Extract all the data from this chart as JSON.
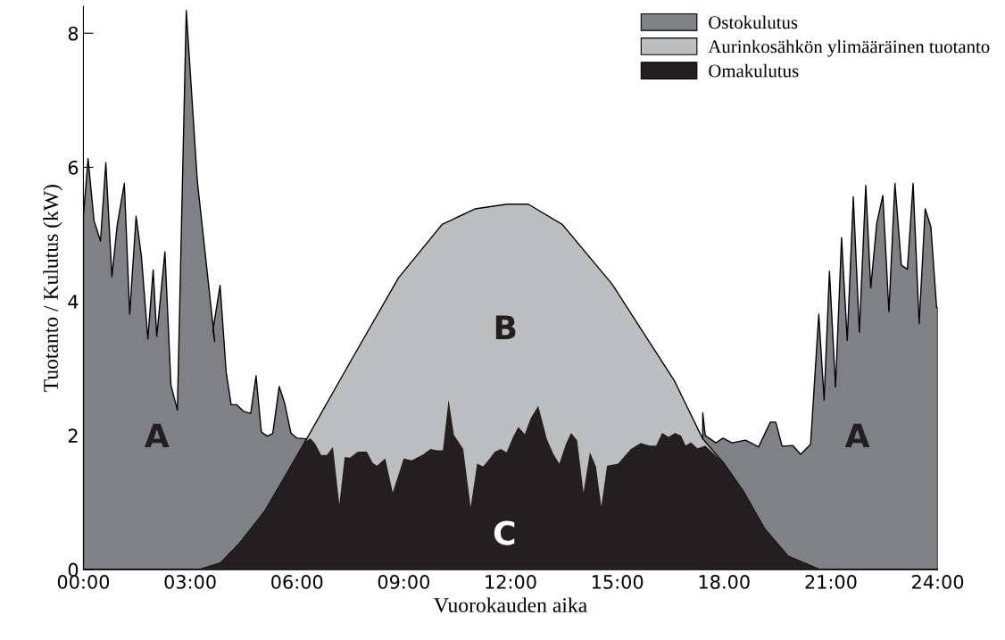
{
  "chart_data": {
    "type": "area",
    "xlabel": "Vuorokauden aika",
    "ylabel": "Tuotanto / Kulutus (kW)",
    "xlim": [
      0,
      24
    ],
    "xticks": [
      {
        "value": 0,
        "label": "00:00"
      },
      {
        "value": 3,
        "label": "03:00"
      },
      {
        "value": 6,
        "label": "06:00"
      },
      {
        "value": 9,
        "label": "09:00"
      },
      {
        "value": 12,
        "label": "12:00"
      },
      {
        "value": 15,
        "label": "15:00"
      },
      {
        "value": 18,
        "label": "18.00"
      },
      {
        "value": 21,
        "label": "21:00"
      },
      {
        "value": 24,
        "label": "24:00"
      }
    ],
    "ylim": [
      0,
      8.4
    ],
    "yticks": [
      0,
      2,
      4,
      6,
      8
    ],
    "grid": false,
    "legend": "top right",
    "series": [
      {
        "name": "Ostokulutus",
        "color": "#808184",
        "x": [
          0,
          0.13,
          0.3,
          0.48,
          0.63,
          0.8,
          0.95,
          1.15,
          1.3,
          1.48,
          1.63,
          1.81,
          1.96,
          2.06,
          2.29,
          2.46,
          2.64,
          2.89,
          3.2,
          3.69,
          3.64,
          3.84,
          4.01,
          4.15,
          4.3,
          4.5,
          4.7,
          4.85,
          5.0,
          5.17,
          5.32,
          5.5,
          5.65,
          5.83,
          6.0,
          6.26,
          6.38,
          6.51,
          6.68,
          6.84,
          7.01,
          7.19,
          7.34,
          7.49,
          7.71,
          7.96,
          8.13,
          8.25,
          8.48,
          8.69,
          9.0,
          9.22,
          9.55,
          9.75,
          9.93,
          10.1,
          10.26,
          10.41,
          10.67,
          10.88,
          11.06,
          11.23,
          11.39,
          11.56,
          11.73,
          11.89,
          12.07,
          12.22,
          12.4,
          12.57,
          12.78,
          13.02,
          13.2,
          13.37,
          13.56,
          13.7,
          13.87,
          14.05,
          14.23,
          14.4,
          14.55,
          14.71,
          15.02,
          15.38,
          15.66,
          15.91,
          16.09,
          16.26,
          16.44,
          16.62,
          16.79,
          16.92,
          17.07,
          17.4,
          17.47,
          17.77,
          17.97,
          18.22,
          18.6,
          18.97,
          19.3,
          19.45,
          19.63,
          19.93,
          20.15,
          20.43,
          20.66,
          20.81,
          20.96,
          21.13,
          21.3,
          21.46,
          21.63,
          21.8,
          21.98,
          22.12,
          22.29,
          22.46,
          22.63,
          22.8,
          22.98,
          23.15,
          23.31,
          23.48,
          23.65,
          23.81,
          23.97,
          24
        ],
        "values": [
          5.27,
          6.13,
          5.2,
          4.9,
          6.07,
          4.37,
          5.14,
          5.76,
          3.81,
          5.27,
          4.67,
          3.44,
          4.47,
          3.48,
          4.74,
          2.75,
          2.38,
          8.34,
          5.8,
          3.4,
          3.57,
          4.24,
          2.95,
          2.46,
          2.46,
          2.36,
          2.33,
          2.89,
          2.05,
          1.99,
          2.03,
          2.73,
          2.49,
          2.04,
          1.96,
          1.95,
          null,
          null,
          null,
          null,
          null,
          null,
          null,
          null,
          null,
          null,
          null,
          null,
          null,
          null,
          null,
          null,
          null,
          null,
          null,
          null,
          null,
          null,
          null,
          null,
          null,
          null,
          null,
          null,
          null,
          null,
          null,
          null,
          null,
          null,
          null,
          null,
          null,
          null,
          null,
          null,
          null,
          null,
          null,
          null,
          null,
          null,
          null,
          null,
          null,
          null,
          null,
          null,
          null,
          null,
          null,
          null,
          null,
          2.34,
          2.0,
          1.89,
          1.96,
          1.89,
          1.93,
          1.83,
          2.2,
          2.2,
          1.84,
          1.85,
          1.72,
          1.87,
          3.81,
          2.53,
          4.45,
          2.72,
          4.95,
          3.42,
          5.56,
          3.54,
          5.73,
          4.2,
          5.17,
          5.58,
          3.85,
          5.76,
          4.54,
          4.48,
          5.76,
          3.67,
          5.38,
          5.11,
          3.91,
          3.91
        ]
      },
      {
        "name": "Aurinkosähkön ylimääräinen tuotanto",
        "color": "#bdbec0",
        "x": [
          0,
          3.0,
          3.3,
          3.85,
          4.35,
          5.08,
          5.7,
          6.23,
          7.5,
          8.85,
          10.08,
          11.0,
          11.9,
          12.5,
          13.45,
          14.85,
          16.6,
          17.4,
          17.97,
          18.55,
          19.15,
          19.8,
          20.65,
          21.5,
          24
        ],
        "values": [
          0,
          0,
          0.01,
          0.1,
          0.37,
          0.86,
          1.42,
          1.91,
          3.1,
          4.35,
          5.15,
          5.38,
          5.45,
          5.45,
          5.15,
          4.26,
          2.82,
          1.95,
          1.6,
          1.16,
          0.6,
          0.2,
          0.01,
          0,
          0
        ]
      },
      {
        "name": "Omakulutus",
        "color": "#231f20",
        "x": [
          0,
          3.0,
          3.3,
          3.85,
          4.35,
          5.08,
          5.7,
          6.23,
          6.38,
          6.51,
          6.68,
          6.84,
          7.01,
          7.19,
          7.34,
          7.49,
          7.71,
          7.96,
          8.13,
          8.25,
          8.48,
          8.69,
          9.0,
          9.22,
          9.55,
          9.75,
          9.93,
          10.1,
          10.26,
          10.41,
          10.67,
          10.88,
          11.06,
          11.23,
          11.39,
          11.56,
          11.73,
          11.89,
          12.07,
          12.22,
          12.4,
          12.57,
          12.78,
          13.02,
          13.2,
          13.37,
          13.56,
          13.7,
          13.87,
          14.05,
          14.23,
          14.4,
          14.55,
          14.71,
          15.02,
          15.38,
          15.66,
          15.91,
          16.09,
          16.26,
          16.44,
          16.62,
          16.79,
          16.92,
          17.07,
          17.25,
          17.47,
          17.97,
          18.55,
          19.15,
          19.8,
          20.65,
          21.5,
          24
        ],
        "values": [
          0,
          0,
          0.01,
          0.1,
          0.37,
          0.86,
          1.42,
          1.91,
          1.96,
          1.88,
          1.71,
          1.71,
          1.83,
          0.97,
          1.68,
          1.67,
          1.76,
          1.76,
          1.59,
          1.55,
          1.66,
          1.15,
          1.66,
          1.63,
          1.72,
          1.8,
          1.78,
          1.78,
          2.53,
          2.01,
          1.8,
          0.93,
          1.58,
          1.54,
          1.64,
          1.76,
          1.8,
          1.75,
          1.98,
          2.13,
          2.02,
          2.26,
          2.44,
          1.95,
          1.73,
          1.58,
          1.88,
          2.04,
          1.93,
          1.15,
          1.75,
          1.54,
          0.94,
          1.55,
          1.58,
          1.8,
          1.89,
          1.85,
          1.85,
          2.04,
          1.98,
          2.04,
          2.0,
          1.85,
          1.9,
          1.81,
          1.85,
          1.6,
          1.16,
          0.6,
          0.2,
          0.01,
          0,
          0
        ]
      }
    ],
    "annotations": [
      "A",
      "B",
      "C",
      "A"
    ]
  }
}
